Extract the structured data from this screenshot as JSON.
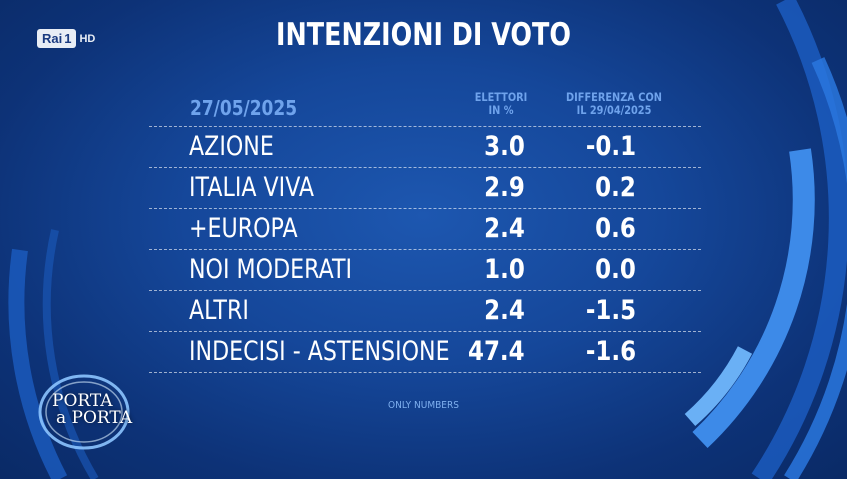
{
  "channel": {
    "name": "Rai",
    "number": "1",
    "quality": "HD"
  },
  "title": "INTENZIONI DI VOTO",
  "date": "27/05/2025",
  "columns": {
    "col1_line1": "ELETTORI",
    "col1_line2": "IN %",
    "col2_line1": "DIFFERENZA CON",
    "col2_line2": "IL 29/04/2025"
  },
  "footnote": "ONLY NUMBERS",
  "show": {
    "line1": "PORTA",
    "line2": "a PORTA"
  },
  "colors": {
    "background": "#15479a",
    "accent": "#6fa3ec",
    "arc": "#3d8ae8"
  },
  "chart_data": {
    "type": "table",
    "title": "INTENZIONI DI VOTO",
    "columns": [
      "ELETTORI IN %",
      "DIFFERENZA CON IL 29/04/2025"
    ],
    "rows": [
      {
        "label": "AZIONE",
        "value": "3.0",
        "diff": "-0.1"
      },
      {
        "label": "ITALIA VIVA",
        "value": "2.9",
        "diff": "0.2"
      },
      {
        "label": "+EUROPA",
        "value": "2.4",
        "diff": "0.6"
      },
      {
        "label": "NOI MODERATI",
        "value": "1.0",
        "diff": "0.0"
      },
      {
        "label": "ALTRI",
        "value": "2.4",
        "diff": "-1.5"
      },
      {
        "label": "INDECISI - ASTENSIONE",
        "value": "47.4",
        "diff": "-1.6"
      }
    ]
  }
}
